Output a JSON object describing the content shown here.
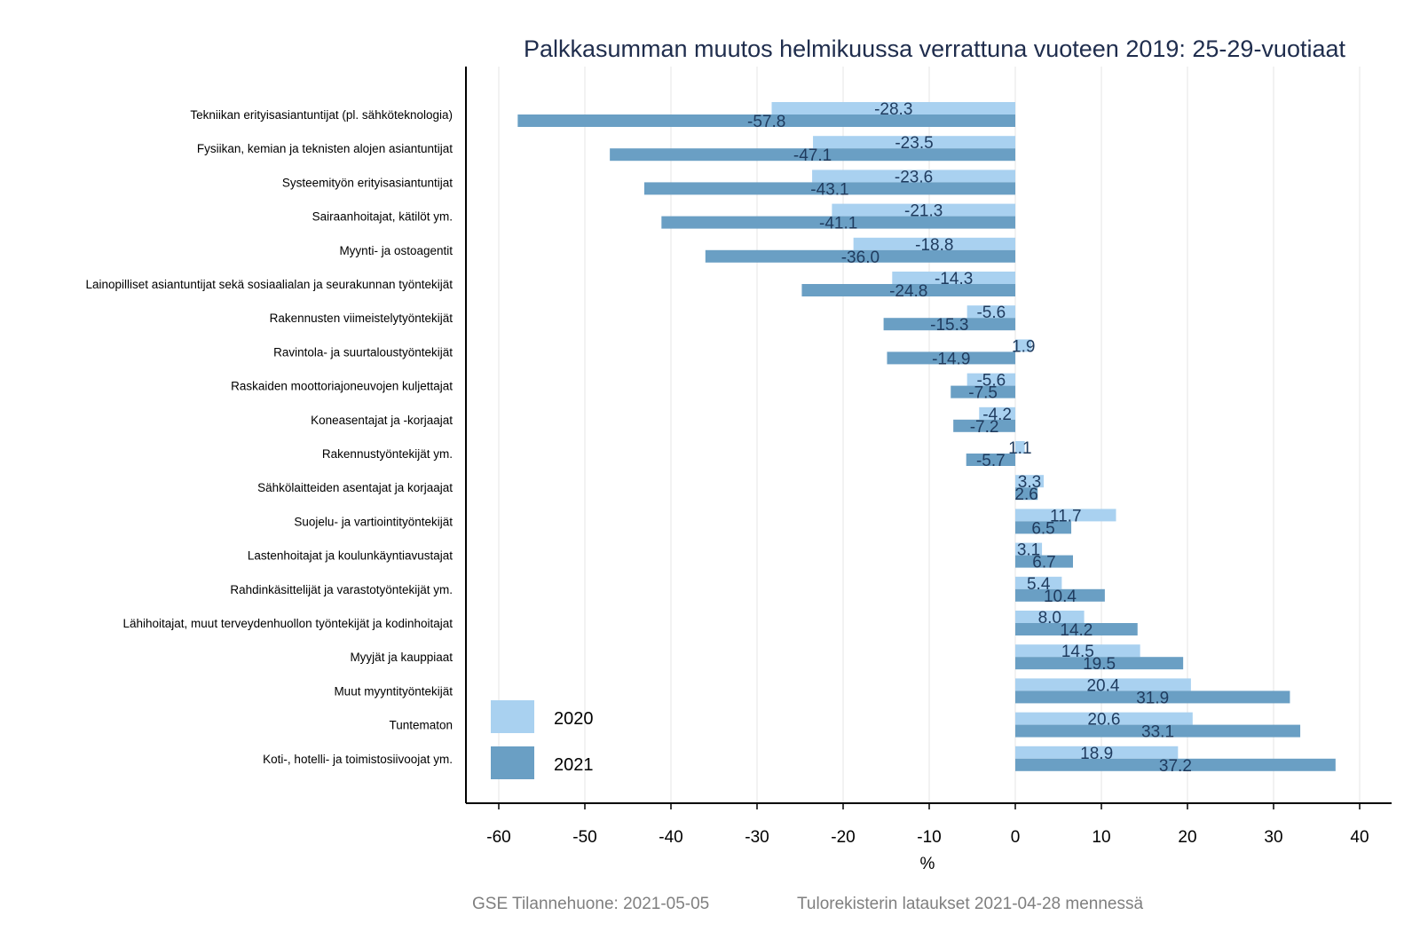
{
  "chart_data": {
    "type": "bar",
    "orientation": "horizontal",
    "title": "Palkkasumman muutos helmikuussa verrattuna vuoteen 2019: 25-29-vuotiaat",
    "xlabel": "%",
    "ylabel": "",
    "xlim": [
      -64,
      44
    ],
    "xticks": [
      -60,
      -50,
      -40,
      -30,
      -20,
      -10,
      0,
      10,
      20,
      30,
      40
    ],
    "xtick_labels": [
      "-60",
      "-50",
      "-40",
      "-30",
      "-20",
      "-10",
      "0",
      "10",
      "20",
      "30",
      "40"
    ],
    "grid": "vertical",
    "legend_position": "bottom-left",
    "categories": [
      "Tekniikan erityisasiantuntijat (pl. sähköteknologia)",
      "Fysiikan, kemian ja teknisten alojen asiantuntijat",
      "Systeemityön erityisasiantuntijat",
      "Sairaanhoitajat, kätilöt ym.",
      "Myynti- ja ostoagentit",
      "Lainopilliset asiantuntijat sekä sosiaalialan ja seurakunnan työntekijät",
      "Rakennusten viimeistelytyöntekijät",
      "Ravintola- ja suurtaloustyöntekijät",
      "Raskaiden moottoriajoneuvojen kuljettajat",
      "Koneasentajat ja -korjaajat",
      "Rakennustyöntekijät ym.",
      "Sähkölaitteiden asentajat ja korjaajat",
      "Suojelu- ja vartiointityöntekijät",
      "Lastenhoitajat ja koulunkäyntiavustajat",
      "Rahdinkäsittelijät ja varastotyöntekijät ym.",
      "Lähihoitajat, muut terveydenhuollon työntekijät ja kodinhoitajat",
      "Myyjät ja kauppiaat",
      "Muut myyntityöntekijät",
      "Tuntematon",
      "Koti-, hotelli- ja toimistosiivoojat ym."
    ],
    "series": [
      {
        "name": "2020",
        "color": "#a9d1f0",
        "values": [
          -28.3,
          -23.5,
          -23.6,
          -21.3,
          -18.8,
          -14.3,
          -5.6,
          1.9,
          -5.6,
          -4.2,
          1.1,
          3.3,
          11.7,
          3.1,
          5.4,
          8.0,
          14.5,
          20.4,
          20.6,
          18.9
        ],
        "labels": [
          "-28.3",
          "-23.5",
          "-23.6",
          "-21.3",
          "-18.8",
          "-14.3",
          "-5.6",
          "1.9",
          "-5.6",
          "-4.2",
          "1.1",
          "3.3",
          "11.7",
          "3.1",
          "5.4",
          "8.0",
          "14.5",
          "20.4",
          "20.6",
          "18.9"
        ]
      },
      {
        "name": "2021",
        "color": "#6a9fc4",
        "values": [
          -57.8,
          -47.1,
          -43.1,
          -41.1,
          -36.0,
          -24.8,
          -15.3,
          -14.9,
          -7.5,
          -7.2,
          -5.7,
          2.6,
          6.5,
          6.7,
          10.4,
          14.2,
          19.5,
          31.9,
          33.1,
          37.2
        ],
        "labels": [
          "-57.8",
          "-47.1",
          "-43.1",
          "-41.1",
          "-36.0",
          "-24.8",
          "-15.3",
          "-14.9",
          "-7.5",
          "-7.2",
          "-5.7",
          "2.6",
          "6.5",
          "6.7",
          "10.4",
          "14.2",
          "19.5",
          "31.9",
          "33.1",
          "37.2"
        ]
      }
    ]
  },
  "footer": {
    "left": "GSE Tilannehuone: 2021-05-05",
    "right": "Tulorekisterin lataukset 2021-04-28 mennessä"
  }
}
